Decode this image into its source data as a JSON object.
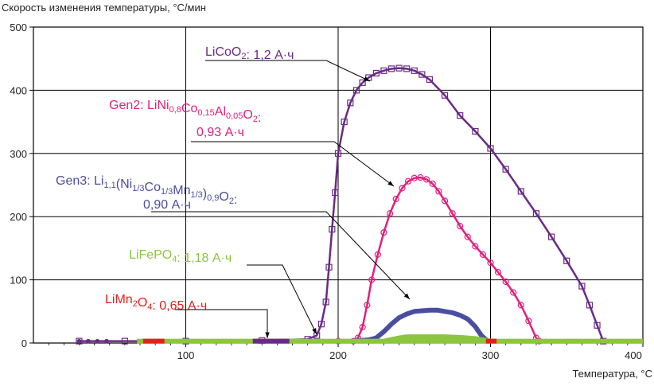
{
  "chart_data": {
    "type": "line",
    "title": "",
    "ylabel": "Скорость изменения температуры, °С/мин",
    "xlabel": "Температура, °С",
    "xlim": [
      0,
      400
    ],
    "ylim": [
      0,
      500
    ],
    "x_ticks": [
      "100",
      "200",
      "300",
      "400"
    ],
    "y_ticks": [
      "0",
      "100",
      "200",
      "300",
      "400",
      "500"
    ],
    "grid": true,
    "colors": {
      "licoo2": "#6a2a84",
      "gen2": "#e0207e",
      "gen3": "#4a4ea0",
      "lifepo4": "#8cc63f",
      "limn2o4": "#e3201b"
    },
    "annotations": [
      {
        "id": "licoo2",
        "parts": [
          [
            "LiCoO",
            ""
          ],
          [
            "2",
            "sub"
          ],
          [
            ": 1,2 А·ч",
            ""
          ]
        ]
      },
      {
        "id": "gen2",
        "parts": [
          [
            "Gen2: LiNi",
            ""
          ],
          [
            "0,8",
            "sub"
          ],
          [
            "Co",
            ""
          ],
          [
            "0,15",
            "sub"
          ],
          [
            "Al",
            ""
          ],
          [
            "0,05",
            "sub"
          ],
          [
            "O",
            ""
          ],
          [
            "2",
            "sub"
          ],
          [
            ":",
            ""
          ]
        ],
        "line2": "0,93 А·ч"
      },
      {
        "id": "gen3",
        "parts": [
          [
            "Gen3: Li",
            ""
          ],
          [
            "1,1",
            "sub"
          ],
          [
            "(Ni",
            ""
          ],
          [
            "1/3",
            "sub"
          ],
          [
            "Co",
            ""
          ],
          [
            "1/3",
            "sub"
          ],
          [
            "Mn",
            ""
          ],
          [
            "1/3",
            "sub"
          ],
          [
            ")",
            ""
          ],
          [
            "0,9",
            "sub"
          ],
          [
            "O",
            ""
          ],
          [
            "2",
            "sub"
          ],
          [
            ":",
            ""
          ]
        ],
        "line2": "0,90 А·ч"
      },
      {
        "id": "lifepo4",
        "parts": [
          [
            "LiFePO",
            ""
          ],
          [
            "4",
            "sub"
          ],
          [
            ": 1,18 А·ч",
            ""
          ]
        ]
      },
      {
        "id": "limn2o4",
        "parts": [
          [
            "LiMn",
            ""
          ],
          [
            "2",
            "sub"
          ],
          [
            "O",
            ""
          ],
          [
            "4",
            "sub"
          ],
          [
            ": 0,65 А·ч",
            ""
          ]
        ]
      }
    ],
    "series": [
      {
        "id": "licoo2",
        "marker": "square",
        "x": [
          30,
          60,
          100,
          150,
          180,
          186,
          189,
          192,
          194,
          196,
          198,
          200,
          204,
          208,
          212,
          216,
          220,
          225,
          230,
          235,
          240,
          245,
          250,
          255,
          260,
          270,
          280,
          290,
          300,
          310,
          320,
          330,
          340,
          350,
          360,
          365,
          370,
          374
        ],
        "y": [
          3,
          3,
          3,
          4,
          6,
          12,
          30,
          65,
          120,
          180,
          238,
          300,
          350,
          380,
          400,
          412,
          420,
          427,
          431,
          434,
          435,
          434,
          431,
          425,
          417,
          392,
          360,
          335,
          308,
          275,
          240,
          205,
          168,
          130,
          90,
          60,
          28,
          3
        ]
      },
      {
        "id": "gen2",
        "marker": "circle",
        "x": [
          200,
          210,
          213,
          216,
          219,
          222,
          226,
          230,
          234,
          238,
          242,
          246,
          250,
          254,
          258,
          262,
          266,
          270,
          275,
          280,
          285,
          290,
          295,
          300,
          305,
          310,
          315,
          320,
          325,
          330,
          332
        ],
        "y": [
          3,
          3,
          8,
          25,
          60,
          100,
          140,
          175,
          205,
          228,
          245,
          256,
          261,
          262,
          259,
          252,
          240,
          225,
          205,
          185,
          168,
          153,
          140,
          127,
          112,
          97,
          80,
          60,
          35,
          8,
          3
        ]
      },
      {
        "id": "gen3",
        "marker": "none",
        "x": [
          210,
          220,
          225,
          230,
          235,
          240,
          245,
          250,
          255,
          260,
          265,
          270,
          275,
          280,
          285,
          290,
          294,
          298
        ],
        "y": [
          3,
          5,
          8,
          18,
          30,
          40,
          46,
          50,
          51,
          52,
          52,
          50,
          48,
          44,
          38,
          26,
          12,
          3
        ]
      },
      {
        "id": "lifepo4",
        "marker": "none",
        "x": [
          68,
          400
        ],
        "y": [
          3,
          3
        ],
        "bump": {
          "x": [
            230,
            240,
            245,
            250,
            260,
            270,
            280,
            290,
            300
          ],
          "y": [
            3,
            8,
            10,
            10,
            10,
            10,
            9,
            7,
            3
          ]
        }
      },
      {
        "id": "limn2o4",
        "marker": "none",
        "segments": [
          [
            72,
            86
          ],
          [
            297,
            304
          ]
        ],
        "y": [
          3,
          3
        ]
      }
    ]
  }
}
